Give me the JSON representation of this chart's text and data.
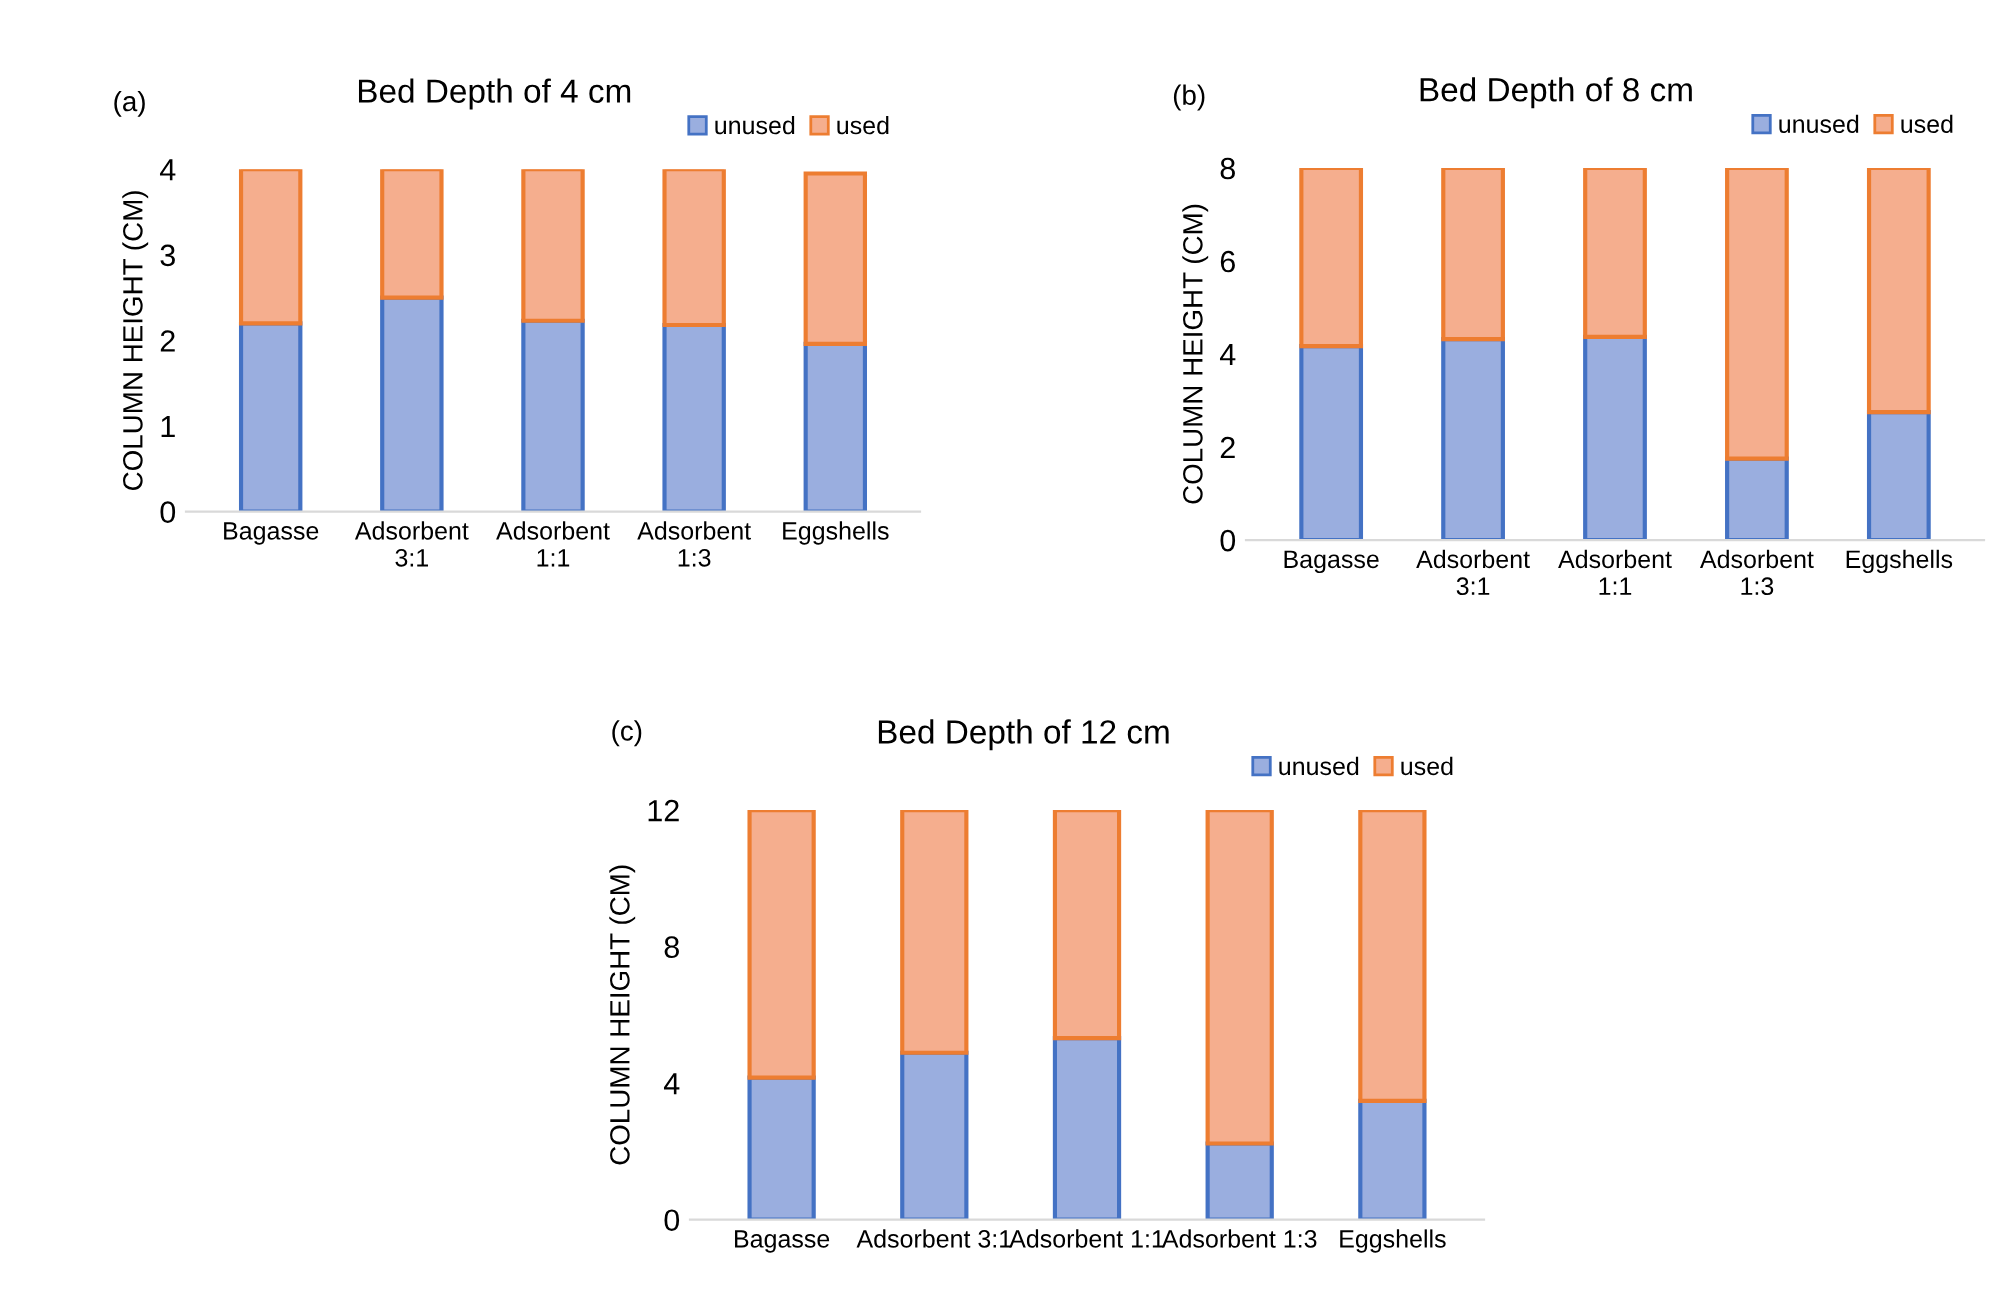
{
  "chart_data": [
    {
      "type": "bar",
      "stacked": true,
      "title": "Bed Depth of 4 cm",
      "ylabel": "COLUMN HEIGHT (CM)",
      "annotations": [
        "(a)"
      ],
      "categories": [
        "Bagasse",
        "Adsorbent\n3:1",
        "Adsorbent\n1:1",
        "Adsorbent\n1:3",
        "Eggshells"
      ],
      "series": [
        {
          "name": "unused",
          "color": "#9aaedf",
          "values": [
            2.2,
            2.5,
            2.23,
            2.18,
            1.96
          ]
        },
        {
          "name": "used",
          "color": "#f5ae8e",
          "values": [
            1.8,
            1.5,
            1.77,
            1.82,
            1.99
          ]
        }
      ],
      "ylim": [
        0,
        4
      ],
      "yticks": [
        0,
        1,
        2,
        3,
        4
      ],
      "grid": false,
      "legend": "top right"
    },
    {
      "type": "bar",
      "stacked": true,
      "title": "Bed Depth of 8 cm",
      "ylabel": "COLUMN HEIGHT (CM)",
      "annotations": [
        "(b)"
      ],
      "categories": [
        "Bagasse",
        "Adsorbent\n3:1",
        "Adsorbent\n1:1",
        "Adsorbent\n1:3",
        "Eggshells"
      ],
      "series": [
        {
          "name": "unused",
          "color": "#9aaedf",
          "values": [
            4.17,
            4.32,
            4.37,
            1.75,
            2.75
          ]
        },
        {
          "name": "used",
          "color": "#f5ae8e",
          "values": [
            3.83,
            3.68,
            3.63,
            6.25,
            5.25
          ]
        }
      ],
      "ylim": [
        0,
        8
      ],
      "yticks": [
        0,
        2,
        4,
        6,
        8
      ],
      "grid": false,
      "legend": "top right"
    },
    {
      "type": "bar",
      "stacked": true,
      "title": "Bed Depth of 12 cm",
      "ylabel": "COLUMN HEIGHT (CM)",
      "annotations": [
        "(c)"
      ],
      "categories": [
        "Bagasse",
        "Adsorbent 3:1",
        "Adsorbent 1:1",
        "Adsorbent 1:3",
        "Eggshells"
      ],
      "series": [
        {
          "name": "unused",
          "color": "#9aaedf",
          "values": [
            4.16,
            4.89,
            5.32,
            2.23,
            3.48
          ]
        },
        {
          "name": "used",
          "color": "#f5ae8e",
          "values": [
            7.84,
            7.11,
            6.68,
            9.77,
            8.52
          ]
        }
      ],
      "ylim": [
        0,
        12
      ],
      "yticks": [
        0,
        4,
        8,
        12
      ],
      "grid": false,
      "legend": "top right"
    }
  ]
}
